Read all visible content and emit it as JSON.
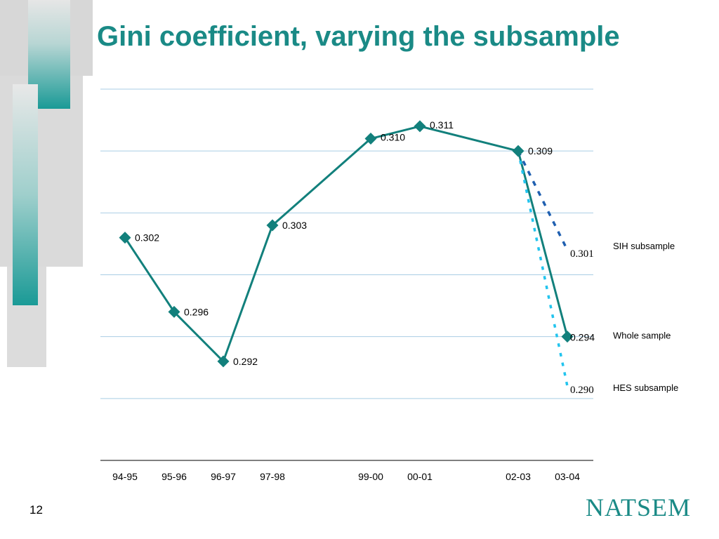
{
  "slide": {
    "title": "Gini coefficient, varying the subsample",
    "page_number": "12",
    "logo_text": "NATSEM"
  },
  "colors": {
    "title": "#1a8a86",
    "main_series": "#12807c",
    "sih_series": "#1f5fb0",
    "hes_series": "#22c4ee",
    "gridline": "#a9cde4",
    "deco_gray": "#d6d6d6",
    "deco_teal": "#1a9a96"
  },
  "chart_data": {
    "type": "line",
    "categories": [
      "94-95",
      "95-96",
      "96-97",
      "97-98",
      "99-00",
      "00-01",
      "02-03",
      "03-04"
    ],
    "category_positions": [
      0,
      1,
      2,
      3,
      5,
      6,
      8,
      9
    ],
    "ylim": [
      0.284,
      0.314
    ],
    "grid": true,
    "series": [
      {
        "name": "Whole sample",
        "style": "solid",
        "marker": "diamond",
        "points": [
          {
            "x": "94-95",
            "y": 0.302,
            "label": "0.302"
          },
          {
            "x": "95-96",
            "y": 0.296,
            "label": "0.296"
          },
          {
            "x": "96-97",
            "y": 0.292,
            "label": "0.292"
          },
          {
            "x": "97-98",
            "y": 0.303,
            "label": "0.303"
          },
          {
            "x": "99-00",
            "y": 0.31,
            "label": "0.310"
          },
          {
            "x": "00-01",
            "y": 0.311,
            "label": "0.311"
          },
          {
            "x": "02-03",
            "y": 0.309,
            "label": "0.309"
          },
          {
            "x": "03-04",
            "y": 0.294,
            "label": "0.294"
          }
        ]
      },
      {
        "name": "SIH subsample",
        "style": "dashed",
        "points": [
          {
            "x": "02-03",
            "y": 0.309
          },
          {
            "x": "03-04",
            "y": 0.301,
            "label": "0.301"
          }
        ]
      },
      {
        "name": "HES subsample",
        "style": "dotted",
        "points": [
          {
            "x": "02-03",
            "y": 0.309
          },
          {
            "x": "03-04",
            "y": 0.29,
            "label": "0.290"
          }
        ]
      }
    ]
  }
}
